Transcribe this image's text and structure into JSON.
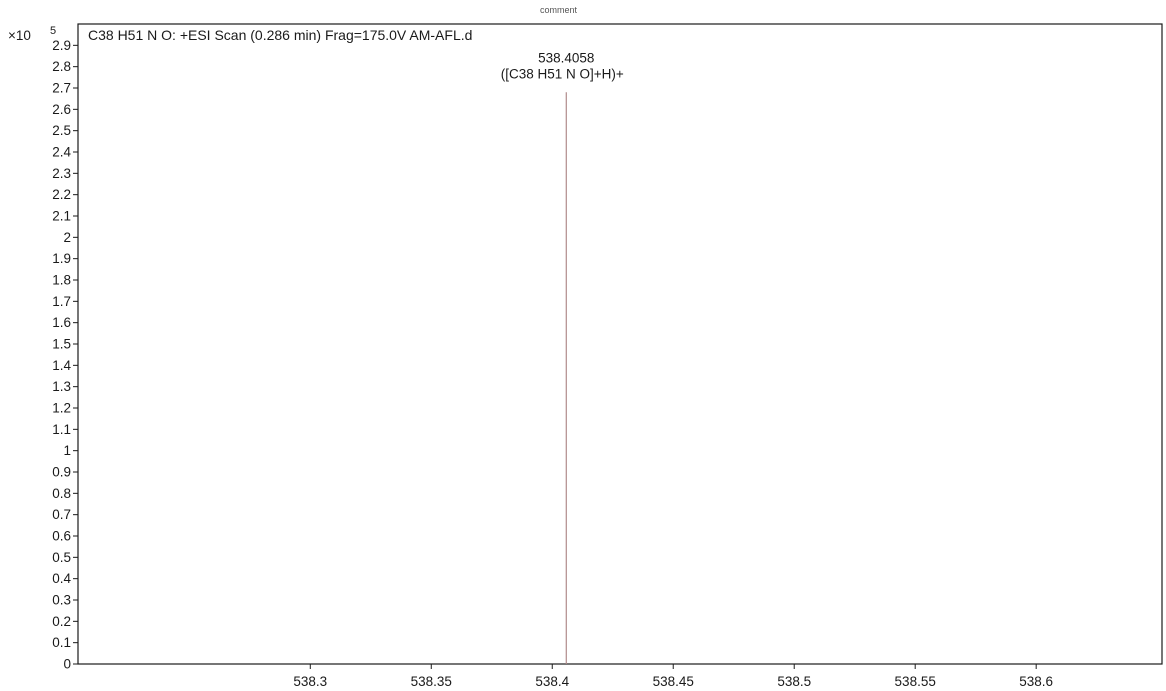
{
  "header": {
    "comment_label": "comment"
  },
  "chart_data": {
    "type": "bar",
    "title": "C38 H51 N O: +ESI Scan (0.286 min) Frag=175.0V AM-AFL.d",
    "xlabel": "",
    "ylabel": "",
    "y_multiplier": "×10",
    "y_exponent": "5",
    "xlim": [
      538.204,
      538.652
    ],
    "ylim": [
      0,
      3.0
    ],
    "x_ticks": [
      538.3,
      538.35,
      538.4,
      538.45,
      538.5,
      538.55,
      538.6
    ],
    "x_tick_labels": [
      "538.3",
      "538.35",
      "538.4",
      "538.45",
      "538.5",
      "538.55",
      "538.6"
    ],
    "y_ticks": [
      0,
      0.1,
      0.2,
      0.3,
      0.4,
      0.5,
      0.6,
      0.7,
      0.8,
      0.9,
      1,
      1.1,
      1.2,
      1.3,
      1.4,
      1.5,
      1.6,
      1.7,
      1.8,
      1.9,
      2,
      2.1,
      2.2,
      2.3,
      2.4,
      2.5,
      2.6,
      2.7,
      2.8,
      2.9
    ],
    "y_tick_labels": [
      "0",
      "0.1",
      "0.2",
      "0.3",
      "0.4",
      "0.5",
      "0.6",
      "0.7",
      "0.8",
      "0.9",
      "1",
      "1.1",
      "1.2",
      "1.3",
      "1.4",
      "1.5",
      "1.6",
      "1.7",
      "1.8",
      "1.9",
      "2",
      "2.1",
      "2.2",
      "2.3",
      "2.4",
      "2.5",
      "2.6",
      "2.7",
      "2.8",
      "2.9"
    ],
    "grid": false,
    "peaks": [
      {
        "mz": 538.4058,
        "intensity": 2.68,
        "label_mz": "538.4058",
        "label_ion": "([C38 H51 N O]+H)+"
      }
    ],
    "colors": {
      "peak": "#b08a8a",
      "axis": "#1a1a1a",
      "frame": "#1a1a1a"
    }
  }
}
